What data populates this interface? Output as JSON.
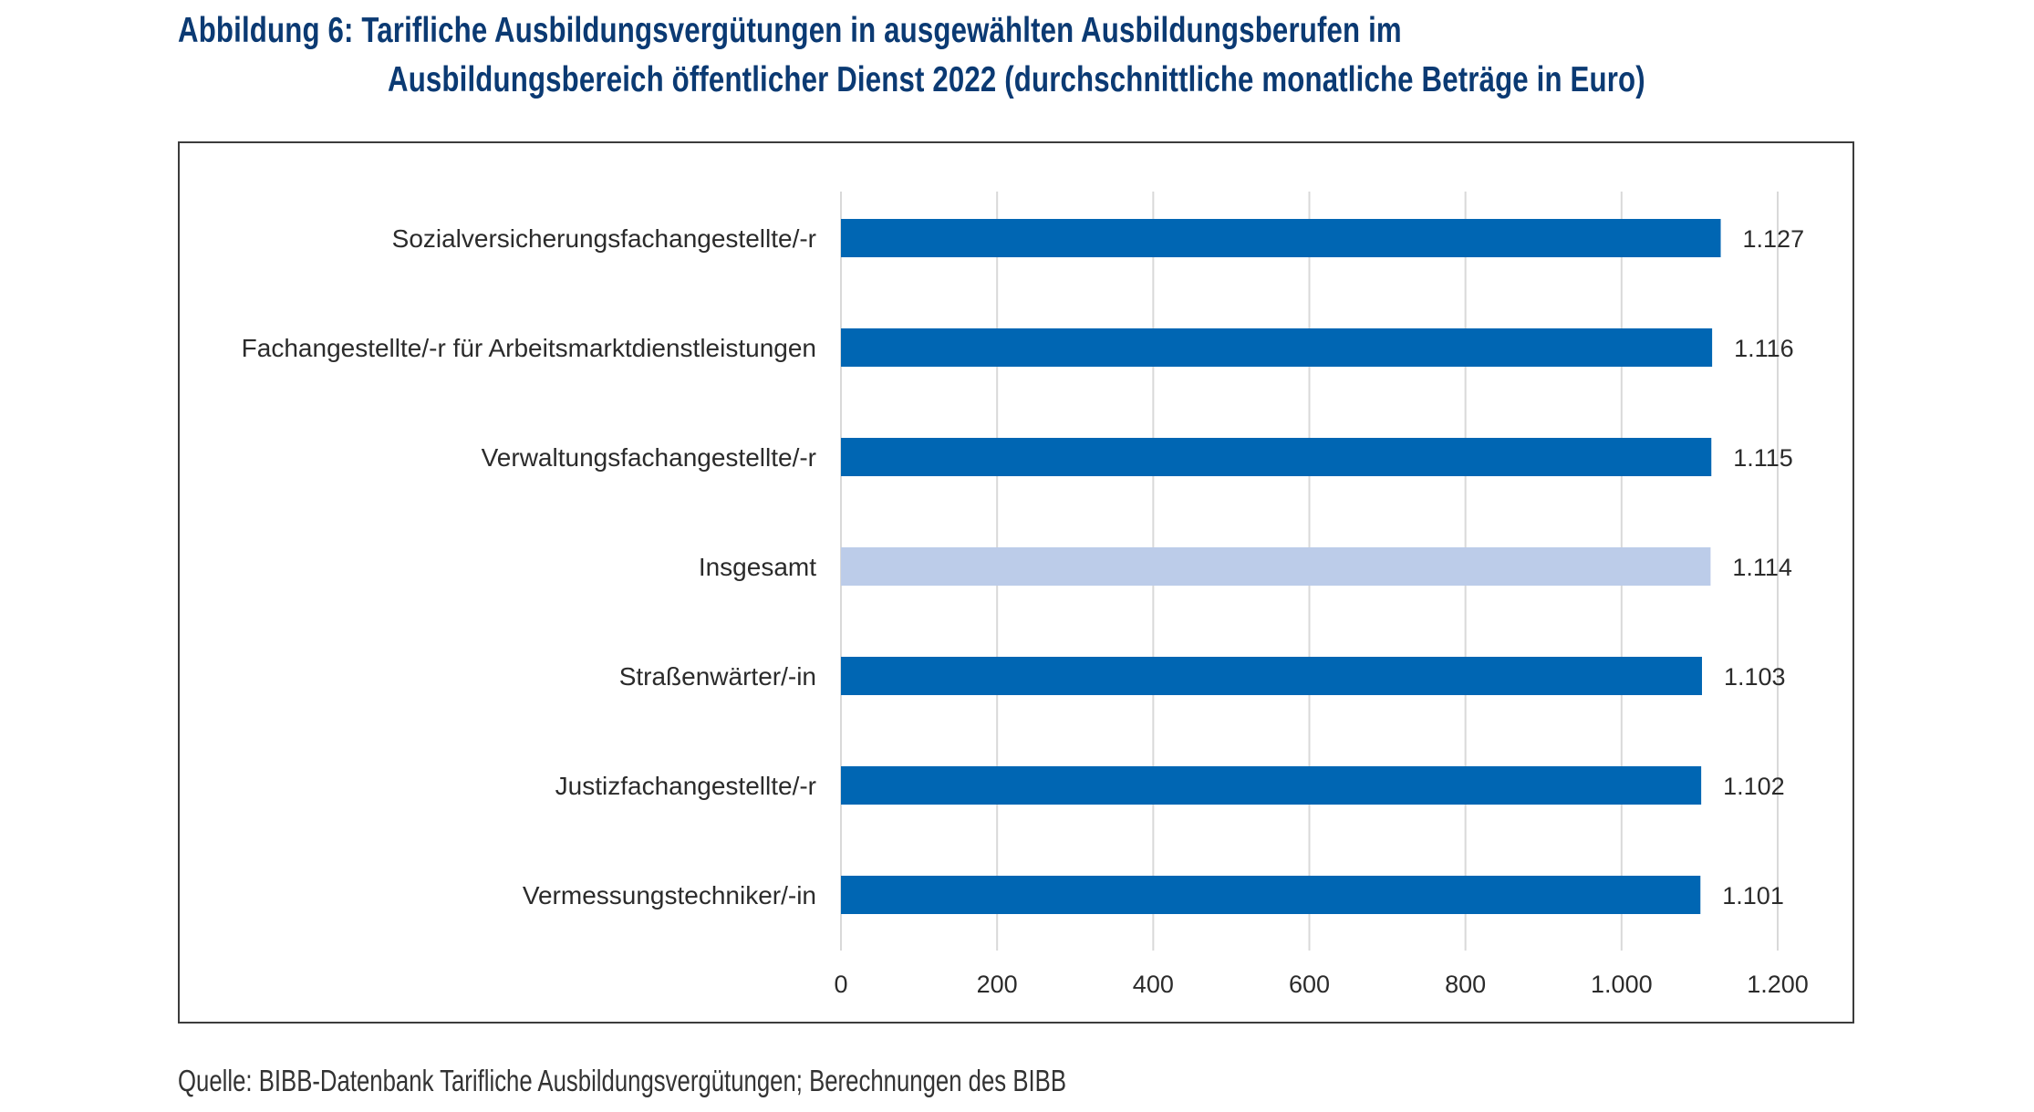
{
  "figure": {
    "title_line1": "Abbildung 6: Tarifliche Ausbildungsvergütungen in ausgewählten Ausbildungsberufen im",
    "title_line2": "Ausbildungsbereich öffentlicher Dienst 2022 (durchschnittliche monatliche Beträge in Euro)",
    "source": "Quelle: BIBB-Datenbank Tarifliche Ausbildungsvergütungen; Berechnungen des BIBB"
  },
  "colors": {
    "bar": "#0066b3",
    "bar_highlight": "#bccce9",
    "grid": "#d9d9d9",
    "title": "#0b3a73"
  },
  "chart_data": {
    "type": "bar",
    "orientation": "horizontal",
    "title": "Abbildung 6: Tarifliche Ausbildungsvergütungen in ausgewählten Ausbildungsberufen im Ausbildungsbereich öffentlicher Dienst 2022 (durchschnittliche monatliche Beträge in Euro)",
    "xlabel": "",
    "ylabel": "",
    "categories": [
      "Sozialversicherungsfachangestellte/-r",
      "Fachangestellte/-r für Arbeitsmarktdienstleistungen",
      "Verwaltungsfachangestellte/-r",
      "Insgesamt",
      "Straßenwärter/-in",
      "Justizfachangestellte/-r",
      "Vermessungstechniker/-in"
    ],
    "values": [
      1127,
      1116,
      1115,
      1114,
      1103,
      1102,
      1101
    ],
    "value_labels": [
      "1.127",
      "1.116",
      "1.115",
      "1.114",
      "1.103",
      "1.102",
      "1.101"
    ],
    "highlight": [
      false,
      false,
      false,
      true,
      false,
      false,
      false
    ],
    "xlim": [
      0,
      1200
    ],
    "xticks": [
      0,
      200,
      400,
      600,
      800,
      1000,
      1200
    ],
    "xtick_labels": [
      "0",
      "200",
      "400",
      "600",
      "800",
      "1.000",
      "1.200"
    ],
    "grid": "vertical",
    "legend": "none"
  }
}
